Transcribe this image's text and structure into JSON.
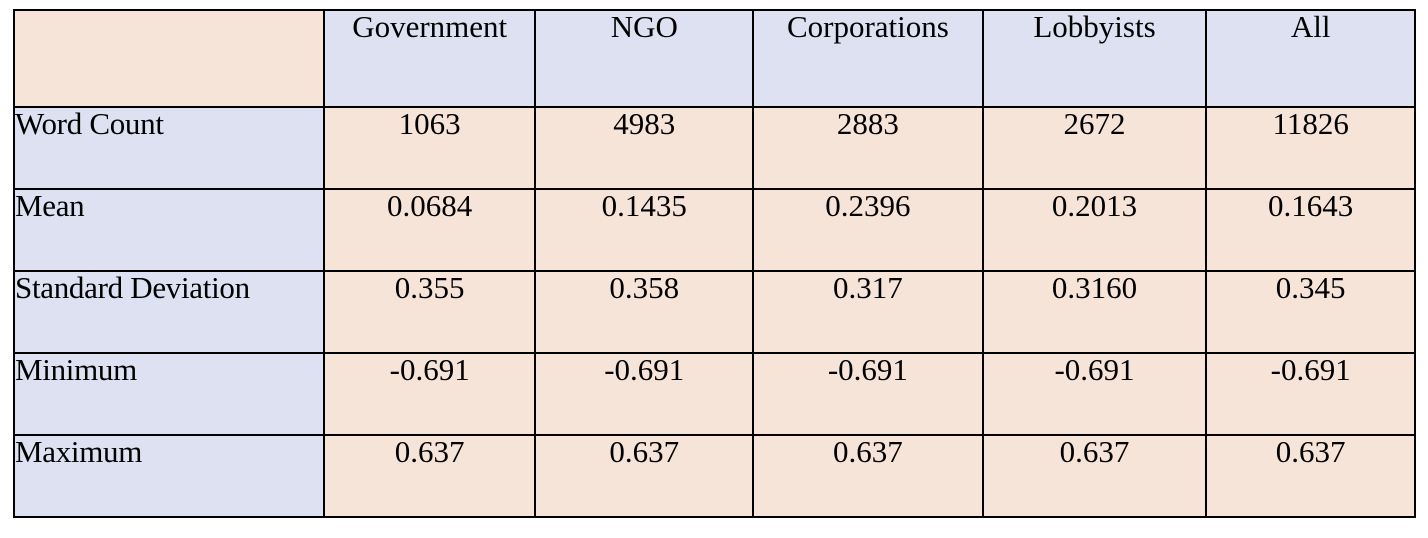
{
  "table": {
    "columns": [
      "Government",
      "NGO",
      "Corporations",
      "Lobbyists",
      "All"
    ],
    "rows": [
      {
        "label": "Word Count",
        "values": [
          "1063",
          "4983",
          "2883",
          "2672",
          "11826"
        ]
      },
      {
        "label": "Mean",
        "values": [
          "0.0684",
          "0.1435",
          "0.2396",
          "0.2013",
          "0.1643"
        ]
      },
      {
        "label": "Standard Deviation",
        "values": [
          "0.355",
          "0.358",
          "0.317",
          "0.3160",
          "0.345"
        ]
      },
      {
        "label": "Minimum",
        "values": [
          "-0.691",
          "-0.691",
          "-0.691",
          "-0.691",
          "-0.691"
        ]
      },
      {
        "label": "Maximum",
        "values": [
          "0.637",
          "0.637",
          "0.637",
          "0.637",
          "0.637"
        ]
      }
    ]
  },
  "colors": {
    "header_fill": "#dde1f1",
    "cell_fill": "#f7e4d9",
    "border": "#000000"
  }
}
